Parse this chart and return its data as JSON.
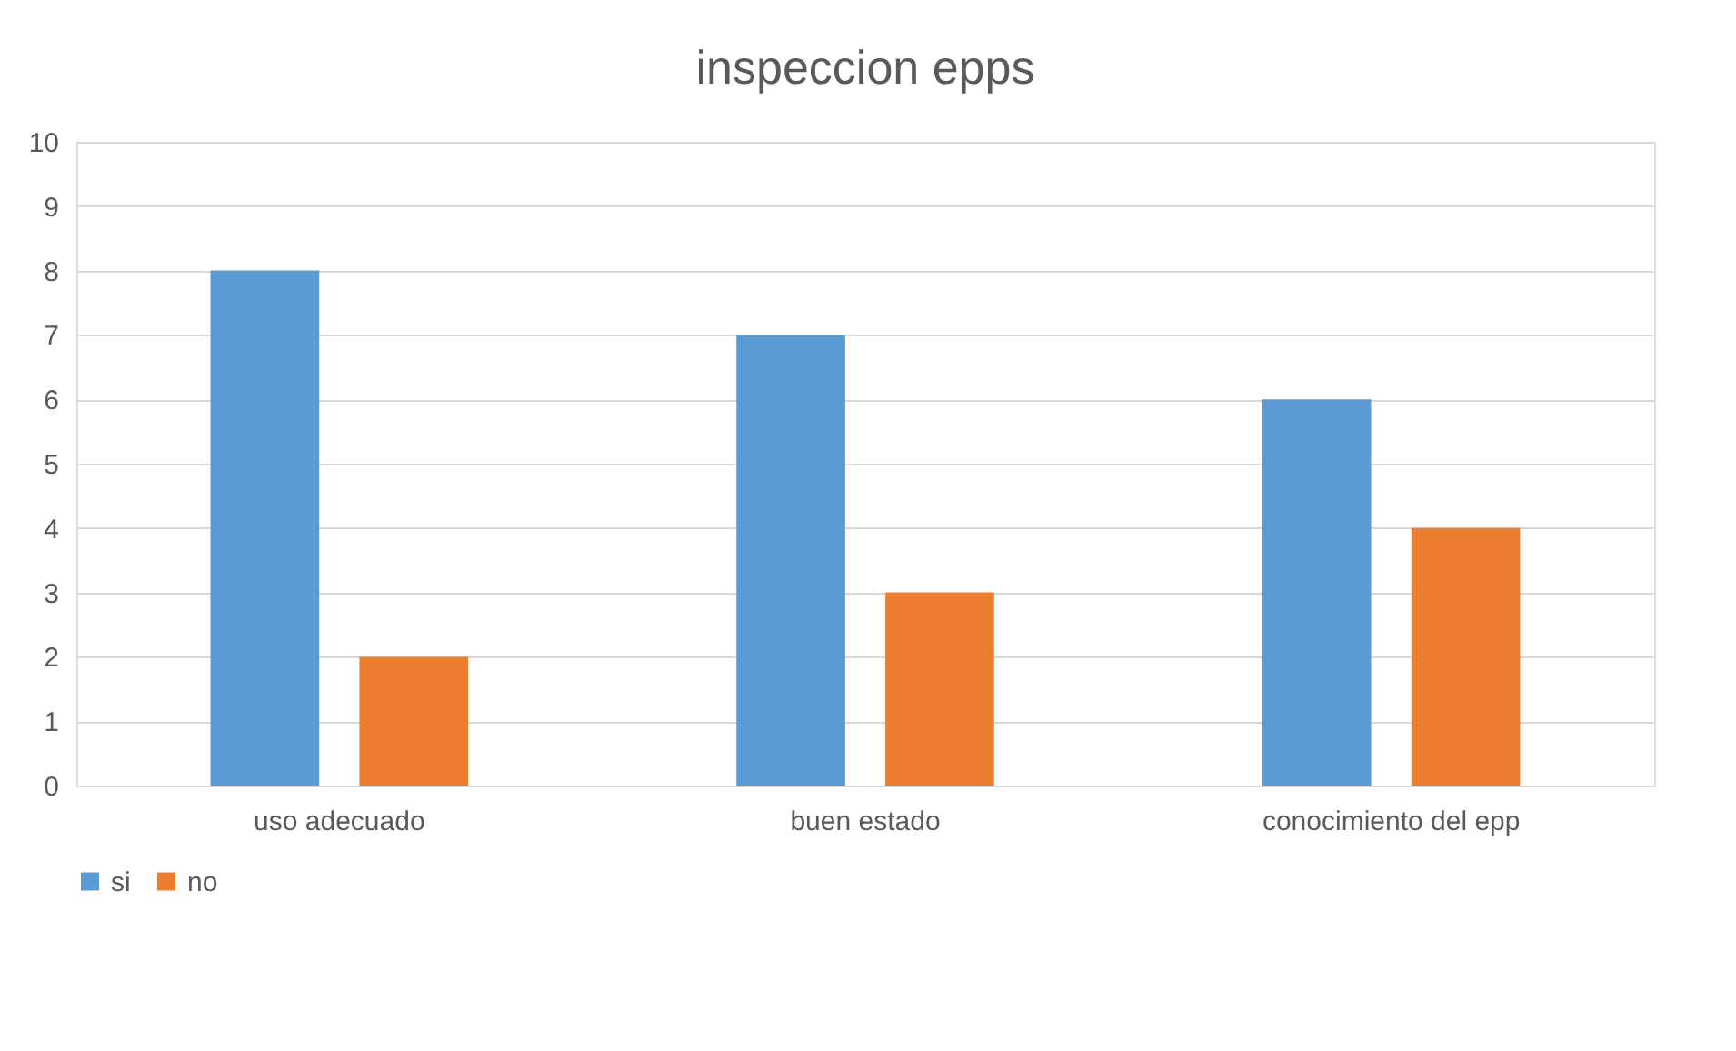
{
  "chart_data": {
    "type": "bar",
    "title": "inspeccion epps",
    "categories": [
      "uso adecuado",
      "buen estado",
      "conocimiento del epp"
    ],
    "series": [
      {
        "name": "si",
        "color": "#5b9bd5",
        "values": [
          8,
          7,
          6
        ]
      },
      {
        "name": "no",
        "color": "#ed7d31",
        "values": [
          2,
          3,
          4
        ]
      }
    ],
    "ylim": [
      0,
      10
    ],
    "yticks": [
      0,
      1,
      2,
      3,
      4,
      5,
      6,
      7,
      8,
      9,
      10
    ],
    "grid": "y",
    "legend": "bottom"
  }
}
